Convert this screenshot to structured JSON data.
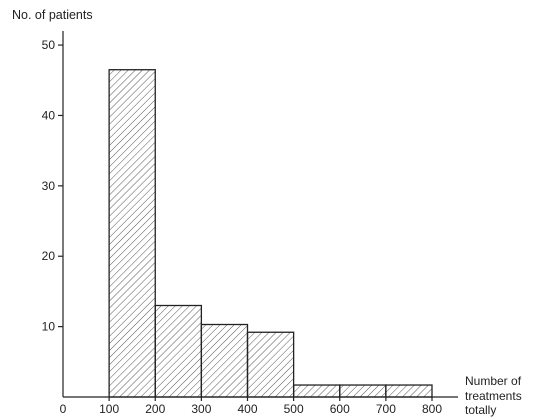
{
  "chart_data": {
    "type": "bar",
    "title": "",
    "ylabel": "No. of patients",
    "xlabel_lines": [
      "Number of",
      "treatments",
      "totally"
    ],
    "xlim": [
      0,
      800
    ],
    "ylim": [
      0,
      52
    ],
    "xticks": [
      0,
      100,
      200,
      300,
      400,
      500,
      600,
      700,
      800
    ],
    "yticks": [
      10,
      20,
      30,
      40,
      50
    ],
    "bins": [
      {
        "from": 100,
        "to": 200,
        "value": 46.5
      },
      {
        "from": 200,
        "to": 300,
        "value": 13
      },
      {
        "from": 300,
        "to": 400,
        "value": 10.3
      },
      {
        "from": 400,
        "to": 500,
        "value": 9.2
      },
      {
        "from": 500,
        "to": 600,
        "value": 1.7
      },
      {
        "from": 600,
        "to": 700,
        "value": 1.7
      },
      {
        "from": 700,
        "to": 800,
        "value": 1.7
      }
    ],
    "fill": "diagonal-hatch",
    "colors": {
      "stroke": "#222222",
      "hatch": "#444444",
      "background": "#ffffff"
    }
  }
}
